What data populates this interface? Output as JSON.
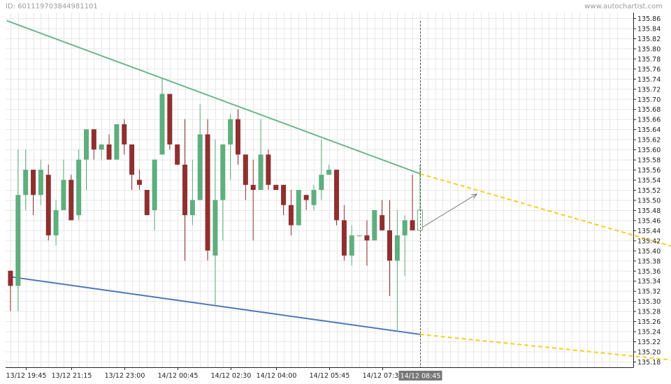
{
  "header": {
    "id_text": "ID: 601119703844981101",
    "brand": "www.autochartist.com"
  },
  "chart_data": {
    "type": "candlestick",
    "title": "",
    "ylim": [
      135.18,
      135.86
    ],
    "y_ticks": [
      "135.86",
      "135.84",
      "135.82",
      "135.80",
      "135.78",
      "135.76",
      "135.74",
      "135.72",
      "135.70",
      "135.68",
      "135.66",
      "135.64",
      "135.62",
      "135.60",
      "135.58",
      "135.56",
      "135.54",
      "135.52",
      "135.50",
      "135.48",
      "135.46",
      "135.44",
      "135.42",
      "135.40",
      "135.38",
      "135.36",
      "135.34",
      "135.32",
      "135.30",
      "135.28",
      "135.26",
      "135.24",
      "135.22",
      "135.20",
      "135.18"
    ],
    "x_ticks": [
      {
        "label": "13/12 19:45",
        "index": 2
      },
      {
        "label": "13/12 21:15",
        "index": 8
      },
      {
        "label": "13/12 23:00",
        "index": 15
      },
      {
        "label": "14/12 00:45",
        "index": 22
      },
      {
        "label": "14/12 02:30",
        "index": 29
      },
      {
        "label": "14/12 04:00",
        "index": 35
      },
      {
        "label": "14/12 05:45",
        "index": 42
      },
      {
        "label": "14/12 07:30",
        "index": 49
      }
    ],
    "highlight_tick": {
      "label": "14/12 08:45",
      "index": 54
    },
    "candles": [
      {
        "o": 135.36,
        "h": 135.36,
        "l": 135.28,
        "c": 135.33
      },
      {
        "o": 135.33,
        "h": 135.6,
        "l": 135.28,
        "c": 135.51
      },
      {
        "o": 135.51,
        "h": 135.6,
        "l": 135.48,
        "c": 135.56
      },
      {
        "o": 135.56,
        "h": 135.56,
        "l": 135.47,
        "c": 135.51
      },
      {
        "o": 135.51,
        "h": 135.58,
        "l": 135.49,
        "c": 135.56
      },
      {
        "o": 135.55,
        "h": 135.57,
        "l": 135.42,
        "c": 135.43
      },
      {
        "o": 135.43,
        "h": 135.5,
        "l": 135.41,
        "c": 135.48
      },
      {
        "o": 135.48,
        "h": 135.58,
        "l": 135.48,
        "c": 135.54
      },
      {
        "o": 135.54,
        "h": 135.55,
        "l": 135.46,
        "c": 135.46
      },
      {
        "o": 135.47,
        "h": 135.6,
        "l": 135.46,
        "c": 135.58
      },
      {
        "o": 135.58,
        "h": 135.64,
        "l": 135.52,
        "c": 135.64
      },
      {
        "o": 135.64,
        "h": 135.64,
        "l": 135.58,
        "c": 135.6
      },
      {
        "o": 135.6,
        "h": 135.61,
        "l": 135.58,
        "c": 135.61
      },
      {
        "o": 135.61,
        "h": 135.63,
        "l": 135.58,
        "c": 135.58
      },
      {
        "o": 135.58,
        "h": 135.65,
        "l": 135.58,
        "c": 135.65
      },
      {
        "o": 135.65,
        "h": 135.66,
        "l": 135.59,
        "c": 135.61
      },
      {
        "o": 135.61,
        "h": 135.61,
        "l": 135.52,
        "c": 135.55
      },
      {
        "o": 135.54,
        "h": 135.56,
        "l": 135.52,
        "c": 135.53
      },
      {
        "o": 135.52,
        "h": 135.52,
        "l": 135.47,
        "c": 135.47
      },
      {
        "o": 135.48,
        "h": 135.58,
        "l": 135.44,
        "c": 135.58
      },
      {
        "o": 135.59,
        "h": 135.74,
        "l": 135.59,
        "c": 135.71
      },
      {
        "o": 135.71,
        "h": 135.71,
        "l": 135.6,
        "c": 135.61
      },
      {
        "o": 135.61,
        "h": 135.61,
        "l": 135.57,
        "c": 135.57
      },
      {
        "o": 135.57,
        "h": 135.66,
        "l": 135.38,
        "c": 135.47
      },
      {
        "o": 135.47,
        "h": 135.58,
        "l": 135.45,
        "c": 135.5
      },
      {
        "o": 135.5,
        "h": 135.69,
        "l": 135.5,
        "c": 135.63
      },
      {
        "o": 135.63,
        "h": 135.66,
        "l": 135.38,
        "c": 135.4
      },
      {
        "o": 135.39,
        "h": 135.62,
        "l": 135.29,
        "c": 135.5
      },
      {
        "o": 135.5,
        "h": 135.61,
        "l": 135.42,
        "c": 135.61
      },
      {
        "o": 135.61,
        "h": 135.67,
        "l": 135.54,
        "c": 135.66
      },
      {
        "o": 135.66,
        "h": 135.68,
        "l": 135.57,
        "c": 135.59
      },
      {
        "o": 135.59,
        "h": 135.59,
        "l": 135.5,
        "c": 135.53
      },
      {
        "o": 135.53,
        "h": 135.58,
        "l": 135.42,
        "c": 135.52
      },
      {
        "o": 135.52,
        "h": 135.66,
        "l": 135.52,
        "c": 135.59
      },
      {
        "o": 135.59,
        "h": 135.6,
        "l": 135.52,
        "c": 135.53
      },
      {
        "o": 135.53,
        "h": 135.53,
        "l": 135.52,
        "c": 135.52
      },
      {
        "o": 135.53,
        "h": 135.53,
        "l": 135.47,
        "c": 135.49
      },
      {
        "o": 135.49,
        "h": 135.52,
        "l": 135.43,
        "c": 135.45
      },
      {
        "o": 135.45,
        "h": 135.52,
        "l": 135.45,
        "c": 135.52
      },
      {
        "o": 135.51,
        "h": 135.51,
        "l": 135.48,
        "c": 135.5
      },
      {
        "o": 135.49,
        "h": 135.53,
        "l": 135.48,
        "c": 135.52
      },
      {
        "o": 135.52,
        "h": 135.62,
        "l": 135.5,
        "c": 135.55
      },
      {
        "o": 135.55,
        "h": 135.57,
        "l": 135.55,
        "c": 135.56
      },
      {
        "o": 135.56,
        "h": 135.56,
        "l": 135.45,
        "c": 135.46
      },
      {
        "o": 135.46,
        "h": 135.49,
        "l": 135.38,
        "c": 135.39
      },
      {
        "o": 135.39,
        "h": 135.45,
        "l": 135.37,
        "c": 135.43
      },
      {
        "o": 135.43,
        "h": 135.43,
        "l": 135.43,
        "c": 135.43
      },
      {
        "o": 135.43,
        "h": 135.46,
        "l": 135.37,
        "c": 135.42
      },
      {
        "o": 135.42,
        "h": 135.48,
        "l": 135.42,
        "c": 135.48
      },
      {
        "o": 135.47,
        "h": 135.5,
        "l": 135.44,
        "c": 135.44
      },
      {
        "o": 135.44,
        "h": 135.5,
        "l": 135.31,
        "c": 135.38
      },
      {
        "o": 135.38,
        "h": 135.48,
        "l": 135.24,
        "c": 135.43
      },
      {
        "o": 135.43,
        "h": 135.47,
        "l": 135.35,
        "c": 135.46
      },
      {
        "o": 135.46,
        "h": 135.55,
        "l": 135.44,
        "c": 135.44
      },
      {
        "o": 135.44,
        "h": 135.57,
        "l": 135.44,
        "c": 135.48,
        "outline": true
      }
    ],
    "pattern": {
      "upper_line": {
        "color": "#6bb68c",
        "from": {
          "index": -0.5,
          "value": 135.855
        },
        "to": {
          "index": 54,
          "value": 135.552
        }
      },
      "lower_line": {
        "color": "#4a78b8",
        "from": {
          "index": 0,
          "value": 135.348
        },
        "to": {
          "index": 54,
          "value": 135.234
        }
      },
      "upper_projection": {
        "color": "#f2d024",
        "from": {
          "index": 54,
          "value": 135.552
        },
        "to": {
          "index": 88,
          "value": 135.405
        }
      },
      "lower_projection": {
        "color": "#f2d024",
        "from": {
          "index": 54,
          "value": 135.234
        },
        "to": {
          "index": 88,
          "value": 135.182
        }
      },
      "forecast_arrow": {
        "color": "#7a7a7a",
        "from": {
          "index": 54.3,
          "value": 135.446
        },
        "to": {
          "index": 61.5,
          "value": 135.512
        }
      }
    },
    "colors": {
      "bull": "#5fae7e",
      "bear": "#8f2f2f",
      "grid": "#e7e7e7",
      "axis": "#222222",
      "highlight_bg": "#777777",
      "highlight_text": "#ffffff"
    },
    "grid": true,
    "current_bar_marker": "dashed-vertical"
  }
}
